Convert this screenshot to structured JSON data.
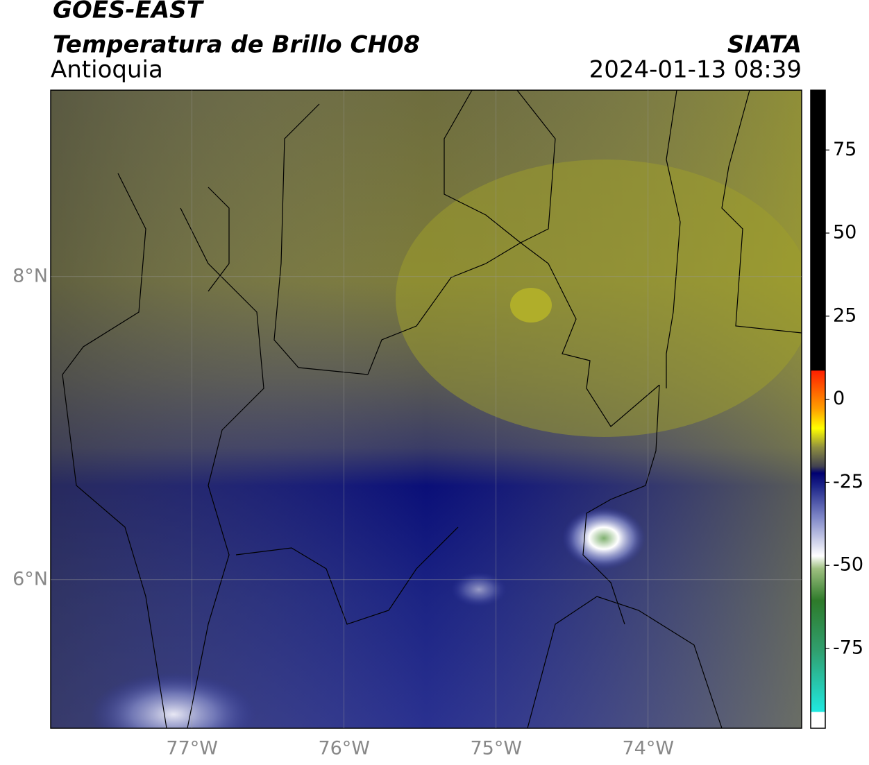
{
  "header": {
    "title": "GOES-EAST",
    "subtitle": "Temperatura de Brillo CH08",
    "region": "Antioquia",
    "source": "SIATA",
    "datetime": "2024-01-13 08:39"
  },
  "map": {
    "lonlim": [
      -77.93,
      -72.99
    ],
    "latlim": [
      5.02,
      9.23
    ],
    "lon_ticks": [
      {
        "value": -77,
        "label": "77°W"
      },
      {
        "value": -76,
        "label": "76°W"
      },
      {
        "value": -75,
        "label": "75°W"
      },
      {
        "value": -74,
        "label": "74°W"
      }
    ],
    "lat_ticks": [
      {
        "value": 8,
        "label": "8°N"
      },
      {
        "value": 6,
        "label": "6°N"
      }
    ]
  },
  "colorbar": {
    "lim": [
      -99,
      93
    ],
    "ticks": [
      75,
      50,
      25,
      0,
      -25,
      -50,
      -75
    ]
  }
}
